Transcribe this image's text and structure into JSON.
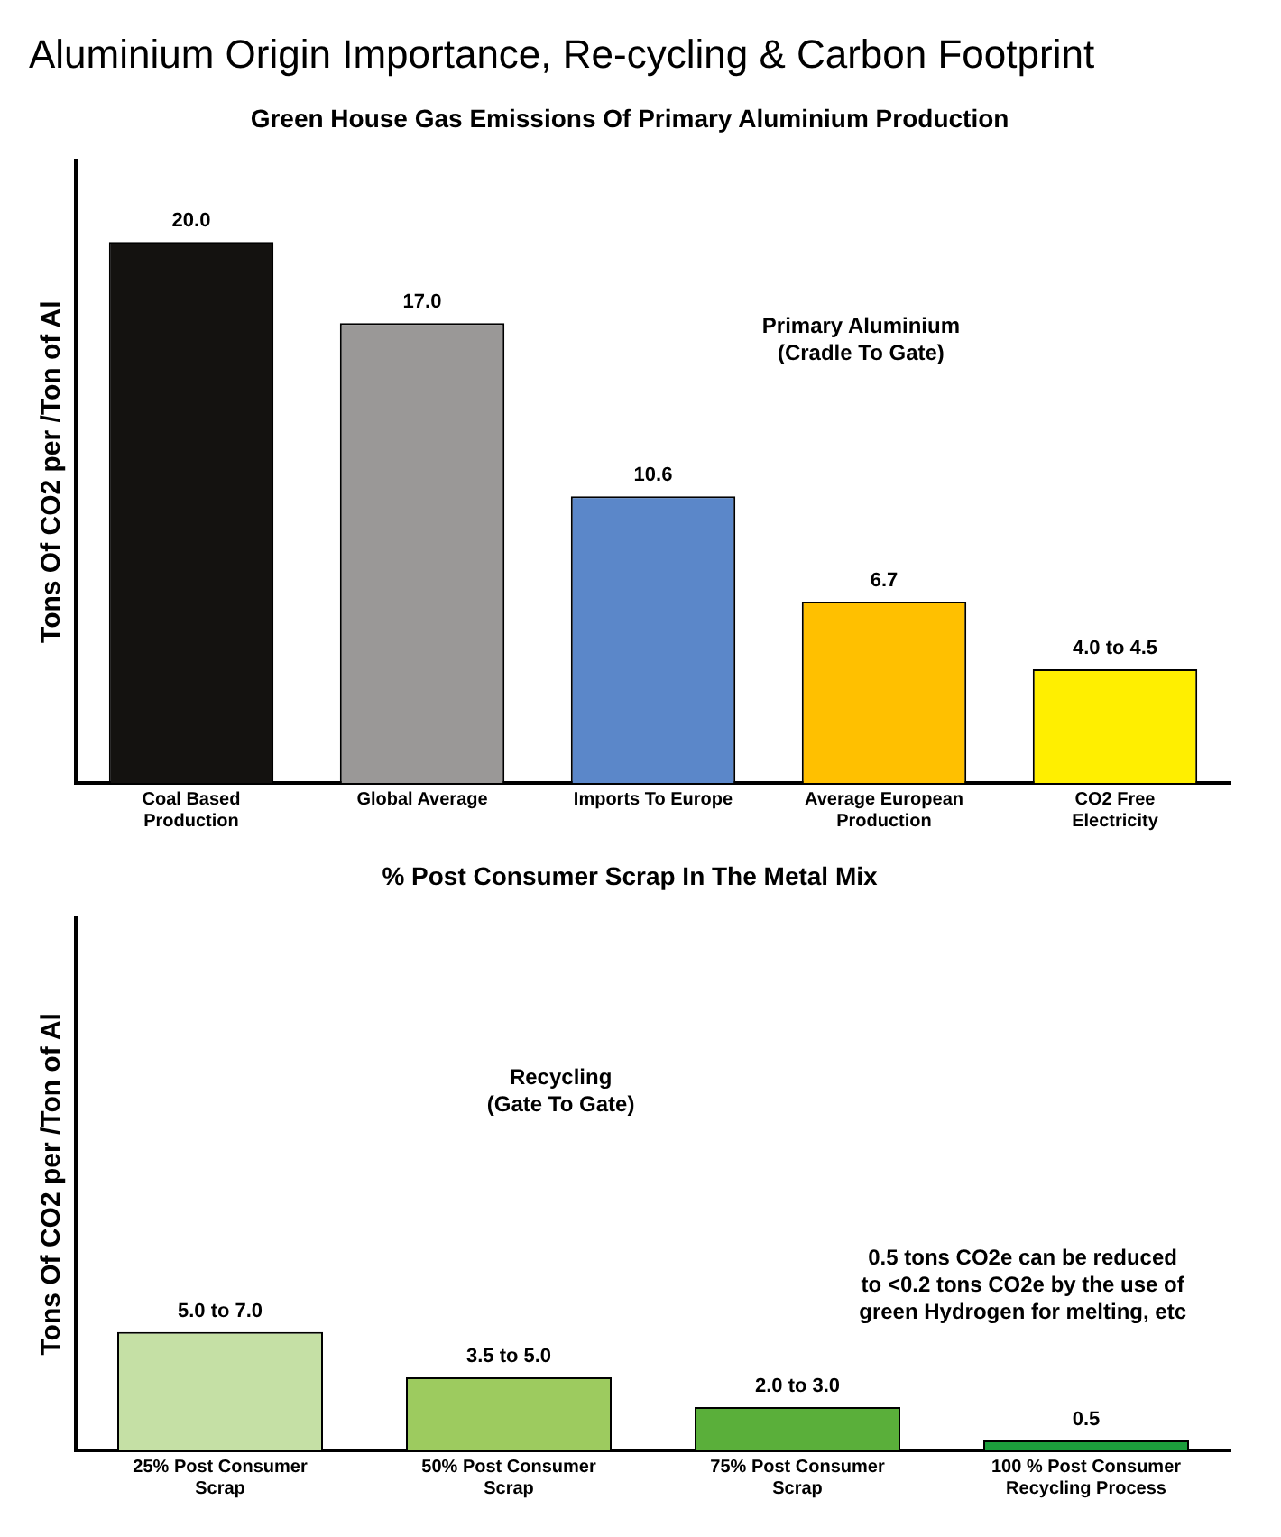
{
  "chart_data": [
    {
      "type": "bar",
      "title": "Aluminium Origin Importance, Re-cycling & Carbon Footprint",
      "subtitle": "Green House Gas Emissions Of Primary Aluminium Production",
      "ylabel": "Tons Of CO2 per /Ton of Al",
      "categories": [
        "Coal Based Production",
        "Global Average",
        "Imports To Europe",
        "Average European Production",
        "CO2 Free Electricity"
      ],
      "values": [
        20.0,
        17.0,
        10.6,
        6.7,
        4.2
      ],
      "colors": [
        "#141210",
        "#9a9897",
        "#5b87c9",
        "#ffc000",
        "#ffef00"
      ],
      "value_labels": [
        "20.0",
        "17.0",
        "10.6",
        "6.7",
        null
      ],
      "ylim": [
        0,
        23
      ],
      "tick_labels": "x",
      "grid": false,
      "legend": false,
      "annotations": [
        "Primary Aluminium\n(Cradle To Gate)",
        {
          "text": "4.0 to 4.5",
          "x": "CO2 Free Electricity",
          "y": 4.2
        }
      ]
    },
    {
      "type": "bar",
      "title": "% Post Consumer Scrap In The Metal Mix",
      "ylabel": "Tons Of CO2 per /Ton of Al",
      "categories": [
        "25% Post Consumer Scrap",
        "50% Post Consumer Scrap",
        "75% Post Consumer Scrap",
        "100 % Post Consumer Recycling Process"
      ],
      "values": [
        6.0,
        3.7,
        2.2,
        0.5
      ],
      "colors": [
        "#c5e0a5",
        "#9dcb5f",
        "#5aaf3a",
        "#1c9e3c"
      ],
      "value_labels": [
        null,
        null,
        null,
        "0.5"
      ],
      "ylim": [
        0,
        27
      ],
      "tick_labels": "x",
      "grid": false,
      "legend": false,
      "annotations": [
        "Recycling\n(Gate To Gate)",
        "0.5 tons CO2e can be reduced\nto <0.2 tons CO2e by the use of\ngreen Hydrogen for melting, etc",
        {
          "text": "5.0 to 7.0",
          "x": "25% Post Consumer Scrap",
          "y": 6.0
        },
        {
          "text": "3.5 to 5.0",
          "x": "50% Post Consumer Scrap",
          "y": 3.7
        },
        {
          "text": "2.0 to 3.0",
          "x": "75% Post Consumer Scrap",
          "y": 2.2
        }
      ]
    }
  ]
}
